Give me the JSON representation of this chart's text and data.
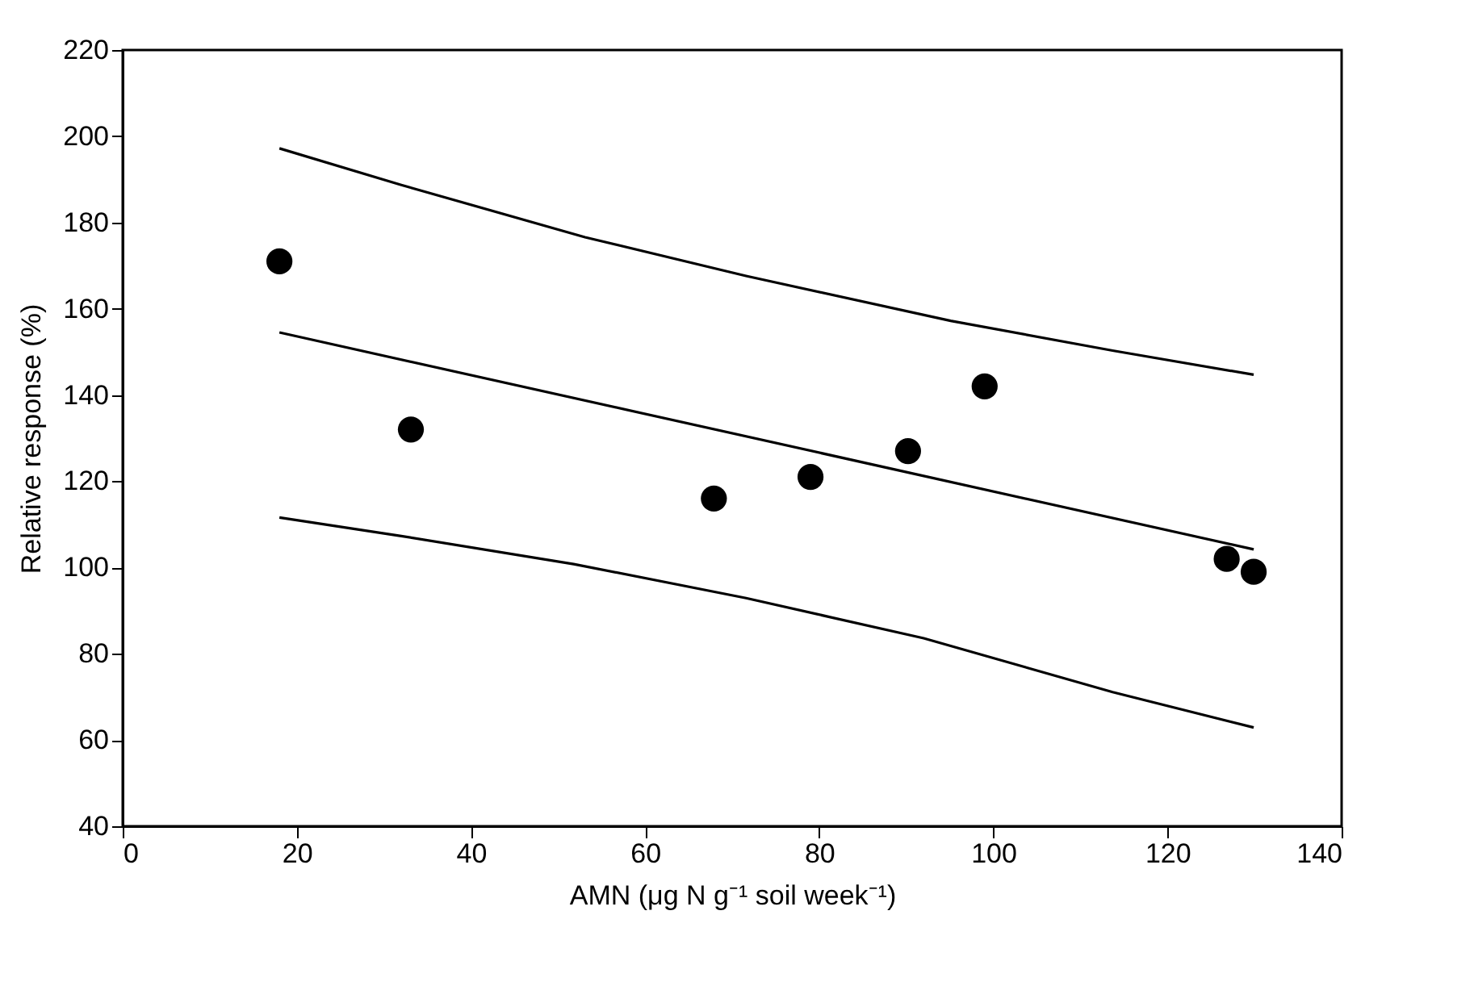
{
  "chart_data": {
    "type": "scatter",
    "xlabel": "AMN (μg N g⁻¹ soil week⁻¹)",
    "ylabel": "Relative response (%)",
    "xlim": [
      0,
      140
    ],
    "xticks": [
      0,
      20,
      40,
      60,
      80,
      100,
      120,
      140
    ],
    "ylim": [
      40,
      220
    ],
    "yticks": [
      40,
      60,
      80,
      100,
      120,
      140,
      160,
      180,
      200,
      220
    ],
    "grid": false,
    "marker": "circle",
    "series": [
      {
        "color": "#000000",
        "x": [
          18.0,
          33.1,
          67.9,
          79.0,
          90.2,
          99.0,
          126.8,
          129.9
        ],
        "values": [
          171,
          132,
          116,
          121,
          127,
          142,
          102,
          99
        ]
      },
      {
        "type": "line",
        "color": "#000000",
        "line_style": "solid",
        "marker": "none",
        "x": [
          18.0,
          129.9
        ],
        "values": [
          154.5,
          104.2
        ]
      },
      {
        "type": "line",
        "color": "#000000",
        "line_style": "solid",
        "marker": "none",
        "x": [
          18.0,
          32.0,
          53.1,
          71.6,
          95.1,
          113.7,
          129.9
        ],
        "values": [
          197.2,
          188.7,
          176.6,
          167.6,
          157.2,
          150.3,
          144.7
        ]
      },
      {
        "type": "line",
        "color": "#000000",
        "line_style": "solid",
        "marker": "none",
        "x": [
          18.0,
          32.0,
          51.8,
          71.6,
          92.0,
          113.7,
          129.9
        ],
        "values": [
          111.6,
          107.3,
          100.8,
          92.9,
          83.6,
          71.1,
          62.9
        ]
      }
    ]
  }
}
